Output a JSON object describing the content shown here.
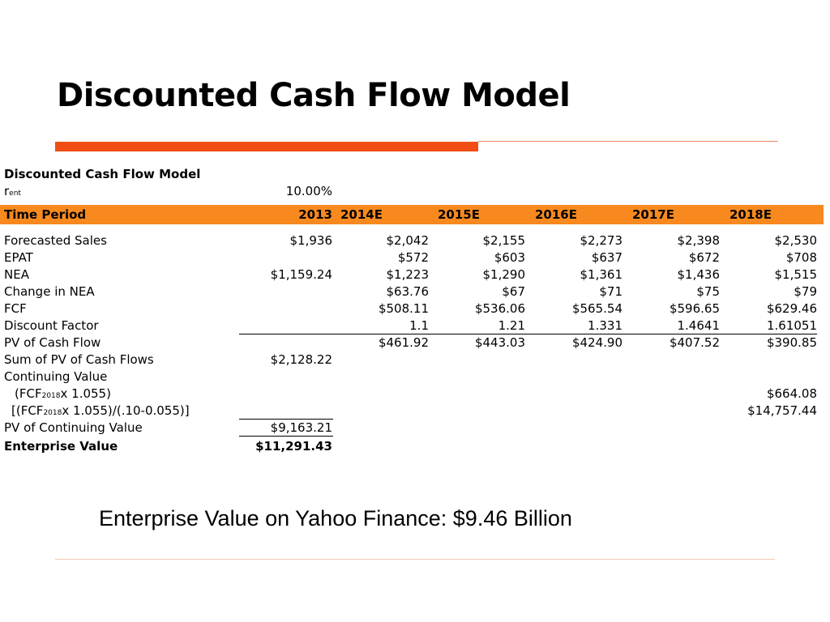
{
  "slide": {
    "title": "Discounted Cash Flow Model",
    "caption": "Enterprise Value on Yahoo Finance: $9.46 Billion"
  },
  "table": {
    "heading": "Discounted Cash Flow Model",
    "rate": {
      "label_main": "r",
      "label_sub": "ent",
      "value": "10.00%"
    },
    "header": {
      "label": "Time Period",
      "years": [
        "2013",
        "2014E",
        "2015E",
        "2016E",
        "2017E",
        "2018E"
      ]
    },
    "rows": [
      {
        "label": "Forecasted Sales",
        "values": [
          "$1,936",
          "$2,042",
          "$2,155",
          "$2,273",
          "$2,398",
          "$2,530"
        ]
      },
      {
        "label": "EPAT",
        "values": [
          "",
          "$572",
          "$603",
          "$637",
          "$672",
          "$708"
        ]
      },
      {
        "label": "NEA",
        "values": [
          "$1,159.24",
          "$1,223",
          "$1,290",
          "$1,361",
          "$1,436",
          "$1,515"
        ]
      },
      {
        "label": "Change in NEA",
        "values": [
          "",
          "$63.76",
          "$67",
          "$71",
          "$75",
          "$79"
        ]
      },
      {
        "label": "FCF",
        "values": [
          "",
          "$508.11",
          "$536.06",
          "$565.54",
          "$596.65",
          "$629.46"
        ]
      },
      {
        "label": "Discount Factor",
        "values": [
          "",
          "1.1",
          "1.21",
          "1.331",
          "1.4641",
          "1.61051"
        ]
      },
      {
        "label": "PV of Cash Flow",
        "values": [
          "",
          "$461.92",
          "$443.03",
          "$424.90",
          "$407.52",
          "$390.85"
        ]
      },
      {
        "label": "Sum of PV of Cash Flows",
        "values": [
          "$2,128.22",
          "",
          "",
          "",
          "",
          ""
        ]
      },
      {
        "label": "Continuing Value",
        "values": [
          "",
          "",
          "",
          "",
          "",
          ""
        ]
      }
    ],
    "cv_formula_1": {
      "pre": "(FCF",
      "sub": "2018",
      "post": "x 1.055)",
      "value": "$664.08"
    },
    "cv_formula_2": {
      "pre": "[(FCF",
      "sub": "2018",
      "post": "x 1.055)/(.10-0.055)]",
      "value": "$14,757.44"
    },
    "pv_continuing": {
      "label": "PV of Continuing Value",
      "value": "$9,163.21"
    },
    "enterprise_value": {
      "label": "Enterprise Value",
      "value": "$11,291.43"
    }
  },
  "colors": {
    "accent_bar": "#f04e14",
    "header_row": "#f7891f"
  }
}
